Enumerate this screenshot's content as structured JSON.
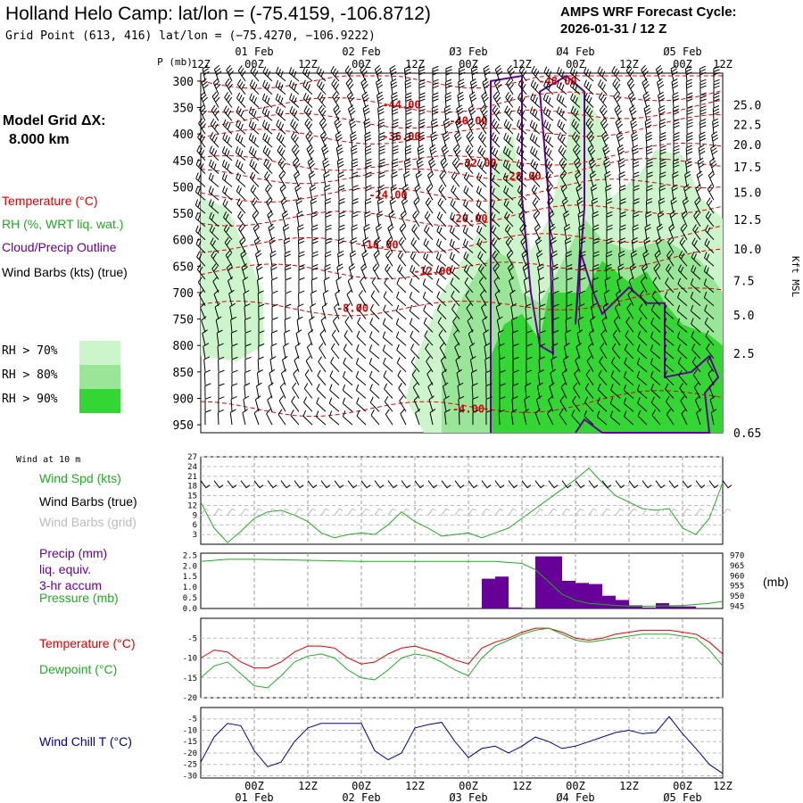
{
  "header": {
    "title": "Holland Helo Camp:  lat/lon = (-75.4159, -106.8712)",
    "subtitle": "Grid Point (613, 416) lat/lon = (−75.4270, −106.9222)",
    "cycle_line1": "AMPS WRF Forecast Cycle:",
    "cycle_line2": "2026-01-31 / 12  Z"
  },
  "model_grid": {
    "label": "Model Grid ΔX:",
    "value": "8.000 km"
  },
  "legend": {
    "temperature": "Temperature (°C)",
    "rh": "RH (%, WRT liq. wat.)",
    "cloud": "Cloud/Precip Outline",
    "wind_barbs": "Wind Barbs (kts) (true)",
    "rh70": "RH > 70%",
    "rh80": "RH > 80%",
    "rh90": "RH > 90%",
    "colors": {
      "temperature": "#e00000",
      "rh": "#22aa22",
      "cloud": "#660099",
      "rh70": "#ccf5cc",
      "rh80": "#99e699",
      "rh90": "#33d633"
    }
  },
  "time_axis": {
    "hours": [
      "00Z",
      "12Z",
      "00Z",
      "12Z",
      "00Z",
      "12Z",
      "00Z",
      "12Z",
      "00Z",
      "12Z"
    ],
    "top_hours_start": "12Z",
    "dates": [
      "01 Feb",
      "02 Feb",
      "Ø3 Feb",
      "Ø4 Feb",
      "Ø5 Feb"
    ]
  },
  "chart_data": [
    {
      "type": "contour",
      "title": "Vertical cross-section",
      "ylabel": "P (mb)",
      "y_ticks": [
        "300",
        "350",
        "400",
        "450",
        "500",
        "550",
        "600",
        "650",
        "700",
        "750",
        "800",
        "850",
        "900",
        "950"
      ],
      "right_label": "Kft MSL",
      "right_ticks": [
        "25.0",
        "22.5",
        "20.0",
        "17.5",
        "15.0",
        "12.5",
        "10.0",
        "7.5",
        "5.0",
        "2.5",
        "0.65"
      ],
      "temperature_labels": [
        "-48.00",
        "-44.00",
        "-40.00",
        "-36.00",
        "-32.00",
        "-28.00",
        "-24.00",
        "-20.00",
        "-16.00",
        "-12.00",
        "-8.00",
        "-4.00"
      ]
    },
    {
      "type": "line",
      "panel_title": "Wind at 10 m",
      "labels": [
        "Wind Spd (kts)",
        "Wind Barbs (true)",
        "Wind Barbs (grid)"
      ],
      "y_ticks": [
        "27",
        "24",
        "21",
        "18",
        "15",
        "12",
        "9",
        "6",
        "3"
      ],
      "ylim": [
        0,
        27
      ],
      "x_hours": [
        0,
        3,
        6,
        9,
        12,
        15,
        18,
        21,
        24,
        27,
        30,
        33,
        36,
        39,
        42,
        45,
        48,
        51,
        54,
        57,
        60,
        63,
        66,
        69,
        72,
        75,
        78,
        81,
        84,
        87,
        90,
        93,
        96,
        99,
        102,
        105,
        108,
        111,
        114,
        117
      ],
      "wind_speed": [
        13,
        5,
        0.5,
        4,
        8,
        10,
        10.5,
        9,
        7,
        3.5,
        2,
        3,
        3.5,
        3,
        6,
        10,
        7,
        5,
        2.5,
        3,
        3.5,
        2,
        3.5,
        5,
        8,
        11,
        14,
        17,
        20,
        23.5,
        19,
        15,
        13,
        11,
        10.5,
        11,
        5,
        3,
        8,
        19
      ]
    },
    {
      "type": "bar",
      "labels": [
        "Precip (mm)",
        "liq. equiv.",
        "3-hr accum",
        "Pressure (mb)"
      ],
      "y_ticks": [
        "2.5",
        "2.0",
        "1.5",
        "1.0",
        "0.5",
        "0.0"
      ],
      "right_ticks": [
        "970",
        "965",
        "960",
        "955",
        "950",
        "945"
      ],
      "right_unit": "(mb)",
      "precip_hours": [
        66,
        69,
        72,
        78,
        81,
        84,
        87,
        90,
        93,
        96,
        99,
        102,
        105,
        108,
        111
      ],
      "precip_mm": [
        1.4,
        1.5,
        0.05,
        2.45,
        2.45,
        1.3,
        1.2,
        1.15,
        0.6,
        0.4,
        0.15,
        0.05,
        0.25,
        0.1,
        0.1
      ],
      "pressure_hours": [
        0,
        6,
        12,
        24,
        36,
        48,
        60,
        66,
        72,
        75,
        78,
        81,
        84,
        87,
        90,
        93,
        96,
        99,
        102,
        108,
        114,
        117
      ],
      "pressure_mb": [
        967,
        968,
        968,
        967.5,
        967,
        967,
        967,
        967,
        966,
        963,
        957,
        951,
        948,
        946.5,
        946,
        945.5,
        945.2,
        945.1,
        945.2,
        945.5,
        946.5,
        947.5
      ]
    },
    {
      "type": "line",
      "labels": [
        "Temperature (°C)",
        "Dewpoint (°C)"
      ],
      "y_ticks": [
        "-5",
        "-10",
        "-15",
        "-20"
      ],
      "ylim": [
        -20,
        0
      ],
      "x_hours": [
        0,
        3,
        6,
        9,
        12,
        15,
        18,
        21,
        24,
        27,
        30,
        33,
        36,
        39,
        42,
        45,
        48,
        51,
        54,
        57,
        60,
        63,
        66,
        69,
        72,
        75,
        78,
        81,
        84,
        87,
        90,
        93,
        96,
        99,
        102,
        105,
        108,
        111,
        114,
        117
      ],
      "temperature": [
        -10,
        -8,
        -8.5,
        -11,
        -12.5,
        -12.5,
        -11,
        -8.5,
        -7,
        -7,
        -7.5,
        -10,
        -11.5,
        -11,
        -9,
        -7.5,
        -7,
        -8,
        -9,
        -10.5,
        -11.5,
        -7.5,
        -6,
        -5,
        -3.5,
        -2.5,
        -2.5,
        -3.5,
        -5,
        -5.5,
        -5,
        -4,
        -3.5,
        -3,
        -3,
        -3,
        -3.5,
        -4,
        -6,
        -9
      ],
      "dewpoint": [
        -15,
        -12,
        -11,
        -14,
        -17,
        -17.5,
        -14.5,
        -11,
        -9.5,
        -9,
        -10,
        -13,
        -15,
        -15.5,
        -13,
        -10,
        -9,
        -9.5,
        -11,
        -13,
        -14.5,
        -10,
        -7,
        -5.5,
        -4,
        -3,
        -2.5,
        -4,
        -5.5,
        -6,
        -5.5,
        -5,
        -4.5,
        -4,
        -4,
        -4,
        -4.5,
        -5,
        -8,
        -12
      ]
    },
    {
      "type": "line",
      "labels": [
        "Wind Chill T (°C)"
      ],
      "y_ticks": [
        "-5",
        "-10",
        "-15",
        "-20",
        "-25",
        "-30"
      ],
      "ylim": [
        -30,
        0
      ],
      "x_hours": [
        0,
        3,
        6,
        9,
        12,
        15,
        18,
        21,
        24,
        27,
        30,
        33,
        36,
        39,
        42,
        45,
        48,
        51,
        54,
        57,
        60,
        63,
        66,
        69,
        72,
        75,
        78,
        81,
        84,
        87,
        90,
        93,
        96,
        99,
        102,
        105,
        108,
        111,
        114,
        117
      ],
      "wind_chill": [
        -24,
        -13,
        -7,
        -8,
        -19,
        -26,
        -24,
        -15,
        -9,
        -7,
        -7,
        -7,
        -7,
        -19,
        -23,
        -20,
        -9,
        -7.5,
        -6.5,
        -15,
        -22,
        -18,
        -17,
        -20,
        -17,
        -13,
        -15,
        -18,
        -17,
        -15,
        -13,
        -11,
        -10,
        -11.5,
        -11,
        -4,
        -11.5,
        -18,
        -25,
        -29
      ]
    }
  ]
}
